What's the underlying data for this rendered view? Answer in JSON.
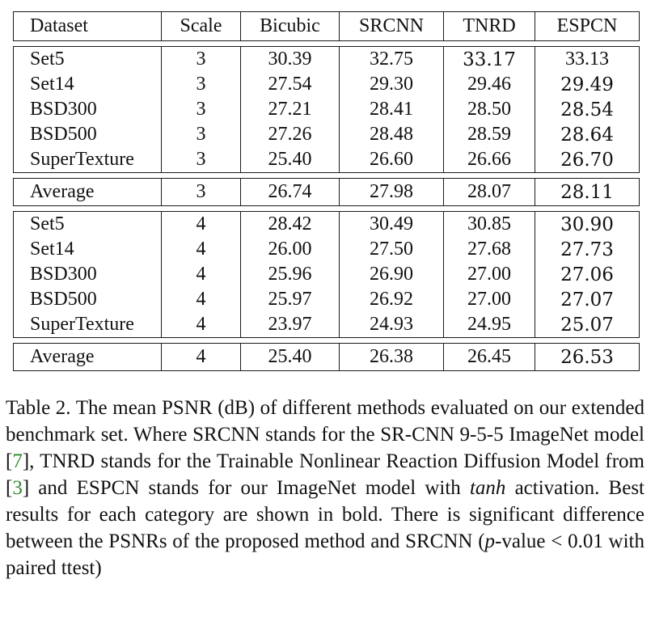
{
  "table": {
    "headers": [
      "Dataset",
      "Scale",
      "Bicubic",
      "SRCNN",
      "TNRD",
      "ESPCN"
    ],
    "groups": [
      {
        "rows": [
          {
            "cells": [
              "Set5",
              "3",
              "30.39",
              "32.75",
              "33.17",
              "33.13"
            ],
            "bold": [
              4
            ]
          },
          {
            "cells": [
              "Set14",
              "3",
              "27.54",
              "29.30",
              "29.46",
              "29.49"
            ],
            "bold": [
              5
            ]
          },
          {
            "cells": [
              "BSD300",
              "3",
              "27.21",
              "28.41",
              "28.50",
              "28.54"
            ],
            "bold": [
              5
            ]
          },
          {
            "cells": [
              "BSD500",
              "3",
              "27.26",
              "28.48",
              "28.59",
              "28.64"
            ],
            "bold": [
              5
            ]
          },
          {
            "cells": [
              "SuperTexture",
              "3",
              "25.40",
              "26.60",
              "26.66",
              "26.70"
            ],
            "bold": [
              5
            ]
          }
        ],
        "average": {
          "cells": [
            "Average",
            "3",
            "26.74",
            "27.98",
            "28.07",
            "28.11"
          ],
          "bold": [
            5
          ]
        }
      },
      {
        "rows": [
          {
            "cells": [
              "Set5",
              "4",
              "28.42",
              "30.49",
              "30.85",
              "30.90"
            ],
            "bold": [
              5
            ]
          },
          {
            "cells": [
              "Set14",
              "4",
              "26.00",
              "27.50",
              "27.68",
              "27.73"
            ],
            "bold": [
              5
            ]
          },
          {
            "cells": [
              "BSD300",
              "4",
              "25.96",
              "26.90",
              "27.00",
              "27.06"
            ],
            "bold": [
              5
            ]
          },
          {
            "cells": [
              "BSD500",
              "4",
              "25.97",
              "26.92",
              "27.00",
              "27.07"
            ],
            "bold": [
              5
            ]
          },
          {
            "cells": [
              "SuperTexture",
              "4",
              "23.97",
              "24.93",
              "24.95",
              "25.07"
            ],
            "bold": [
              5
            ]
          }
        ],
        "average": {
          "cells": [
            "Average",
            "4",
            "25.40",
            "26.38",
            "26.45",
            "26.53"
          ],
          "bold": [
            5
          ]
        }
      }
    ]
  },
  "caption": {
    "t1": "Table 2. The mean PSNR (dB) of different methods evaluated on our extended benchmark set. Where SRCNN stands for the SR-CNN 9-5-5 ImageNet model [",
    "ref1": "7",
    "t2": "], TNRD stands for the Trainable Nonlinear Reaction Diffusion Model from [",
    "ref2": "3",
    "t3": "] and ESPCN stands for our ImageNet model with ",
    "math1": "tanh",
    "t4": " activation. Best results for each category are shown in bold. There is significant difference between the PSNRs of the proposed method and SRCNN (",
    "math2": "p",
    "t5": "-value < 0.01 with paired ttest)"
  }
}
